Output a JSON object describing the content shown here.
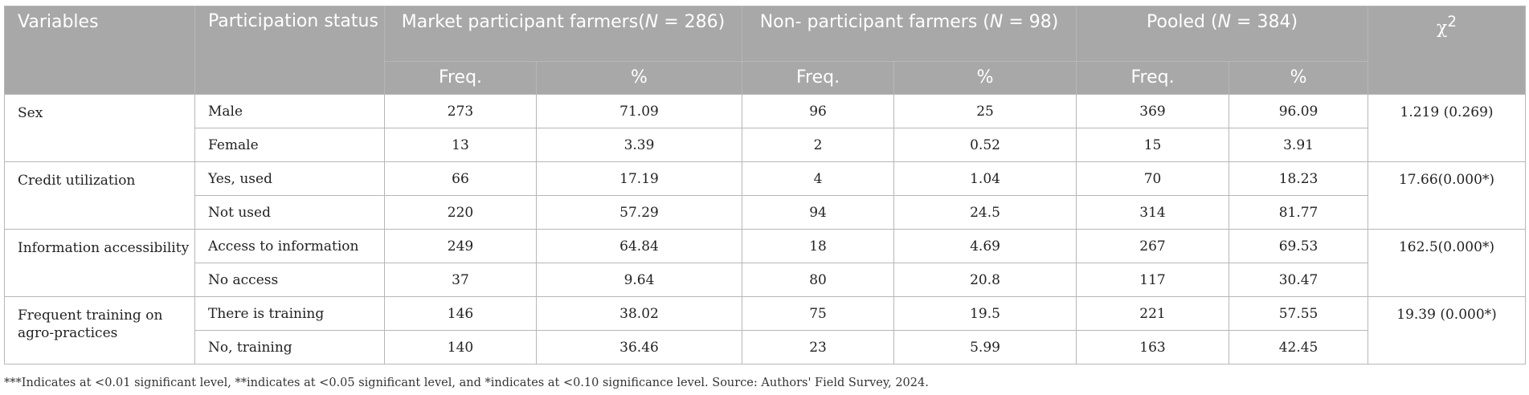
{
  "header": {
    "variables": "Variables",
    "participation_status": "Participation status",
    "groups": [
      {
        "label_prefix": "Market participant farmers(",
        "n_symbol": "N",
        "label_suffix": " = 286)"
      },
      {
        "label_prefix": "Non- participant farmers (",
        "n_symbol": "N",
        "label_suffix": " = 98)"
      },
      {
        "label_prefix": "Pooled (",
        "n_symbol": "N",
        "label_suffix": " = 384)"
      }
    ],
    "chi_symbol": "χ",
    "chi_power": "2",
    "freq": "Freq.",
    "pct": "%"
  },
  "rows": [
    {
      "variable": "Sex",
      "status": "Male",
      "mp_freq": "273",
      "mp_pct": "71.09",
      "np_freq": "96",
      "np_pct": "25",
      "pl_freq": "369",
      "pl_pct": "96.09",
      "chi": "1.219 (0.269)"
    },
    {
      "status": "Female",
      "mp_freq": "13",
      "mp_pct": "3.39",
      "np_freq": "2",
      "np_pct": "0.52",
      "pl_freq": "15",
      "pl_pct": "3.91"
    },
    {
      "variable": "Credit utilization",
      "status": "Yes, used",
      "mp_freq": "66",
      "mp_pct": "17.19",
      "np_freq": "4",
      "np_pct": "1.04",
      "pl_freq": "70",
      "pl_pct": "18.23",
      "chi": "17.66(0.000*)"
    },
    {
      "status": "Not used",
      "mp_freq": "220",
      "mp_pct": "57.29",
      "np_freq": "94",
      "np_pct": "24.5",
      "pl_freq": "314",
      "pl_pct": "81.77"
    },
    {
      "variable": "Information accessibility",
      "status": "Access to information",
      "mp_freq": "249",
      "mp_pct": "64.84",
      "np_freq": "18",
      "np_pct": "4.69",
      "pl_freq": "267",
      "pl_pct": "69.53",
      "chi": "162.5(0.000*)"
    },
    {
      "status": "No access",
      "mp_freq": "37",
      "mp_pct": "9.64",
      "np_freq": "80",
      "np_pct": "20.8",
      "pl_freq": "117",
      "pl_pct": "30.47"
    },
    {
      "variable": "Frequent training on agro-practices",
      "status": "There is training",
      "mp_freq": "146",
      "mp_pct": "38.02",
      "np_freq": "75",
      "np_pct": "19.5",
      "pl_freq": "221",
      "pl_pct": "57.55",
      "chi": "19.39 (0.000*)"
    },
    {
      "status": "No, training",
      "mp_freq": "140",
      "mp_pct": "36.46",
      "np_freq": "23",
      "np_pct": "5.99",
      "pl_freq": "163",
      "pl_pct": "42.45"
    }
  ],
  "footnote": "***Indicates at <0.01 significant level, **indicates at <0.05 significant level, and *indicates at <0.10 significance level. Source: Authors' Field Survey, 2024."
}
